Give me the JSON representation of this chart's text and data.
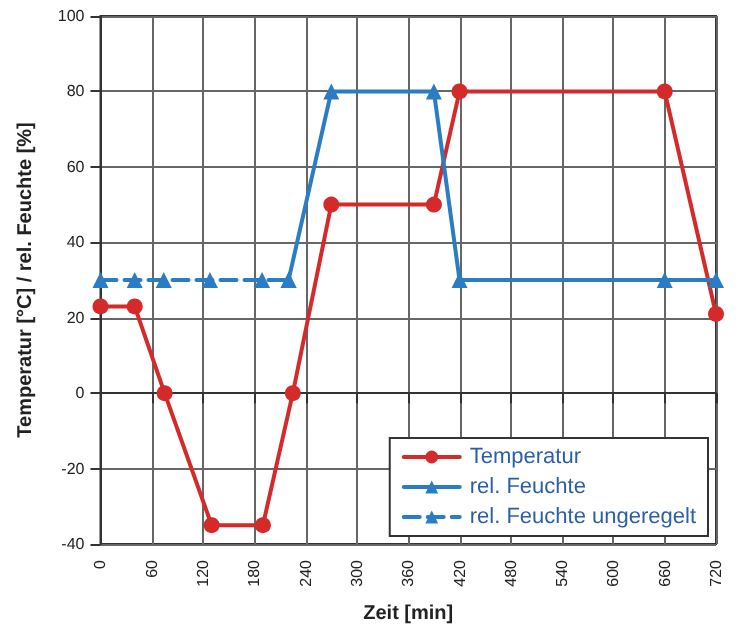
{
  "chart_data": {
    "type": "line",
    "xlabel": "Zeit [min]",
    "ylabel": "Temperatur [°C] / rel. Feuchte [%]",
    "xlim": [
      0,
      720
    ],
    "xticks": [
      0,
      60,
      120,
      180,
      240,
      300,
      360,
      420,
      480,
      540,
      600,
      660,
      720
    ],
    "ylim": [
      -40,
      100
    ],
    "yticks": [
      -40,
      -20,
      0,
      20,
      40,
      60,
      80,
      100
    ],
    "grid": true,
    "legend": "bottom right",
    "series": [
      {
        "name": "Temperatur",
        "color": "#d42a2a",
        "marker": "circle",
        "line_style": "solid",
        "x": [
          0,
          40,
          75,
          130,
          190,
          225,
          270,
          390,
          420,
          660,
          720
        ],
        "values": [
          23,
          23,
          0,
          -35,
          -35,
          0,
          50,
          50,
          80,
          80,
          21
        ]
      },
      {
        "name": "rel. Feuchte",
        "color": "#2a7cc4",
        "marker": "triangle",
        "line_style": "solid",
        "x": [
          220,
          270,
          390,
          420,
          660,
          720
        ],
        "values": [
          30,
          80,
          80,
          30,
          30,
          30
        ]
      },
      {
        "name": "rel. Feuchte ungeregelt",
        "color": "#2a7cc4",
        "marker": "triangle",
        "line_style": "dashed",
        "x": [
          0,
          40,
          74,
          128,
          189,
          220
        ],
        "values": [
          30,
          30,
          30,
          30,
          30,
          30
        ]
      }
    ]
  }
}
